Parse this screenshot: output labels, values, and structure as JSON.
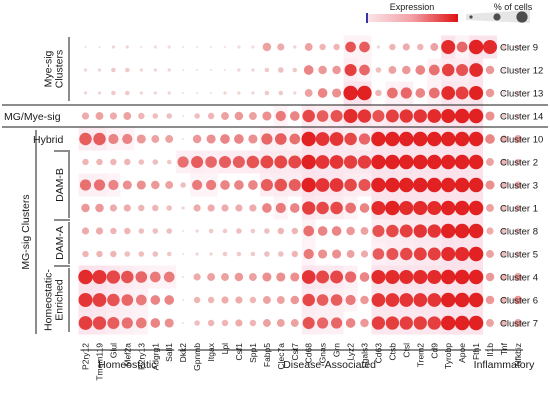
{
  "chart_data": {
    "type": "dotplot",
    "legend": {
      "color_title": "Expression",
      "size_title": "% of cells"
    },
    "genes": [
      "P2ry12",
      "Tmem119",
      "Glul",
      "Mef2a",
      "P2ry13",
      "Adgrg1",
      "Sall1",
      "Dkk2",
      "Gpnmb",
      "Itgax",
      "Lpl",
      "Csf1",
      "Spp1",
      "Fabp5",
      "Clec7a",
      "Cst7",
      "Cd68",
      "Gnas",
      "Grn",
      "Lyz2",
      "Lgals3",
      "Cd63",
      "Ctsb",
      "Ctsl",
      "Trem2",
      "Cd9",
      "Tyrobp",
      "Apoe",
      "Fth1",
      "Il1b",
      "Tnf",
      "Nfkbiz"
    ],
    "clusters": [
      "Cluster 9",
      "Cluster 12",
      "Cluster 13",
      "Cluster 14",
      "Cluster 10",
      "Cluster 2",
      "Cluster 3",
      "Cluster 1",
      "Cluster 8",
      "Cluster 5",
      "Cluster 4",
      "Cluster 6",
      "Cluster 7"
    ],
    "gene_groups": [
      {
        "label": "Homeostatic",
        "from": 0,
        "to": 6
      },
      {
        "label": "Disease-Associated",
        "from": 7,
        "to": 28
      },
      {
        "label": "Inflammatory",
        "from": 29,
        "to": 31
      }
    ],
    "row_groups": [
      {
        "label": "Mye-sig\nClusters",
        "from": 0,
        "to": 2
      },
      {
        "label": "MG/Mye-sig",
        "from": 3,
        "to": 3
      },
      {
        "label": "Hybrid",
        "from": 4,
        "to": 4
      },
      {
        "label": "DAM-B",
        "from": 5,
        "to": 7
      },
      {
        "label": "DAM-A",
        "from": 8,
        "to": 9
      },
      {
        "label": "Homeostatic-\nEnriched",
        "from": 10,
        "to": 12
      }
    ],
    "outer_row_label": "MG-sig Clusters",
    "percent": [
      [
        0.02,
        0.02,
        0.05,
        0.05,
        0.02,
        0.05,
        0.05,
        0.02,
        0.02,
        0.02,
        0.02,
        0.05,
        0.05,
        0.35,
        0.25,
        0.05,
        0.3,
        0.2,
        0.2,
        0.55,
        0.55,
        0.05,
        0.2,
        0.25,
        0.2,
        0.3,
        0.95,
        0.55,
        1.0,
        0.95,
        0.1,
        0.1
      ],
      [
        0.05,
        0.05,
        0.1,
        0.1,
        0.05,
        0.05,
        0.05,
        0.02,
        0.02,
        0.02,
        0.02,
        0.05,
        0.05,
        0.1,
        0.15,
        0.1,
        0.45,
        0.35,
        0.35,
        0.7,
        0.55,
        0.15,
        0.3,
        0.35,
        0.45,
        0.55,
        0.75,
        0.7,
        0.9,
        0.35,
        0.05,
        0.05
      ],
      [
        0.05,
        0.05,
        0.1,
        0.1,
        0.05,
        0.05,
        0.05,
        0.02,
        0.02,
        0.02,
        0.05,
        0.05,
        0.05,
        0.1,
        0.1,
        0.05,
        0.3,
        0.45,
        0.4,
        1.0,
        1.0,
        0.2,
        0.55,
        0.6,
        0.45,
        0.55,
        0.9,
        0.8,
        0.95,
        0.35,
        0.05,
        0.1
      ],
      [
        0.25,
        0.3,
        0.25,
        0.3,
        0.2,
        0.15,
        0.15,
        0.02,
        0.15,
        0.2,
        0.3,
        0.35,
        0.3,
        0.4,
        0.5,
        0.45,
        0.75,
        0.65,
        0.7,
        0.95,
        0.85,
        0.7,
        0.8,
        0.85,
        0.85,
        0.9,
        0.95,
        1.0,
        1.0,
        0.4,
        0.1,
        0.1
      ],
      [
        0.75,
        0.75,
        0.5,
        0.5,
        0.4,
        0.3,
        0.3,
        0.02,
        0.35,
        0.4,
        0.45,
        0.45,
        0.4,
        0.6,
        0.65,
        0.55,
        1.0,
        0.9,
        0.9,
        0.75,
        0.6,
        1.0,
        1.0,
        1.0,
        1.0,
        1.0,
        1.0,
        1.0,
        1.0,
        0.45,
        0.25,
        0.3
      ],
      [
        0.2,
        0.2,
        0.2,
        0.2,
        0.15,
        0.15,
        0.1,
        0.6,
        0.7,
        0.65,
        0.7,
        0.7,
        0.75,
        0.8,
        0.8,
        0.8,
        1.0,
        0.9,
        0.9,
        0.85,
        0.85,
        1.0,
        1.0,
        1.0,
        1.0,
        1.0,
        1.0,
        1.0,
        1.0,
        0.3,
        0.2,
        0.2
      ],
      [
        0.6,
        0.6,
        0.5,
        0.4,
        0.4,
        0.35,
        0.3,
        0.15,
        0.5,
        0.5,
        0.45,
        0.45,
        0.45,
        0.7,
        0.75,
        0.7,
        1.0,
        0.9,
        0.9,
        0.75,
        0.7,
        1.0,
        1.0,
        1.0,
        1.0,
        1.0,
        1.0,
        1.0,
        1.0,
        0.4,
        0.2,
        0.25
      ],
      [
        0.35,
        0.35,
        0.25,
        0.25,
        0.2,
        0.2,
        0.15,
        0.05,
        0.25,
        0.25,
        0.25,
        0.25,
        0.25,
        0.45,
        0.5,
        0.45,
        0.85,
        0.75,
        0.75,
        0.55,
        0.45,
        0.95,
        1.0,
        0.95,
        0.95,
        0.95,
        1.0,
        1.0,
        1.0,
        0.3,
        0.15,
        0.2
      ],
      [
        0.25,
        0.25,
        0.2,
        0.2,
        0.15,
        0.15,
        0.15,
        0.02,
        0.05,
        0.1,
        0.1,
        0.15,
        0.1,
        0.15,
        0.2,
        0.2,
        0.55,
        0.45,
        0.45,
        0.35,
        0.3,
        0.7,
        0.75,
        0.8,
        0.85,
        0.85,
        1.0,
        1.0,
        1.0,
        0.25,
        0.15,
        0.15
      ],
      [
        0.2,
        0.2,
        0.2,
        0.15,
        0.15,
        0.15,
        0.1,
        0.02,
        0.05,
        0.05,
        0.1,
        0.1,
        0.1,
        0.15,
        0.15,
        0.2,
        0.5,
        0.4,
        0.4,
        0.3,
        0.25,
        0.65,
        0.7,
        0.75,
        0.8,
        0.8,
        0.95,
        0.95,
        1.0,
        0.3,
        0.15,
        0.15
      ],
      [
        1.0,
        0.95,
        0.85,
        0.75,
        0.65,
        0.55,
        0.55,
        0.02,
        0.25,
        0.3,
        0.3,
        0.35,
        0.3,
        0.4,
        0.4,
        0.4,
        0.9,
        0.8,
        0.8,
        0.6,
        0.45,
        0.95,
        0.95,
        0.95,
        0.95,
        0.95,
        1.0,
        1.0,
        1.0,
        0.35,
        0.2,
        0.3
      ],
      [
        0.95,
        0.9,
        0.75,
        0.65,
        0.55,
        0.45,
        0.45,
        0.02,
        0.2,
        0.2,
        0.25,
        0.25,
        0.2,
        0.3,
        0.3,
        0.35,
        0.75,
        0.65,
        0.65,
        0.5,
        0.35,
        0.9,
        0.9,
        0.9,
        0.9,
        0.9,
        1.0,
        1.0,
        1.0,
        0.35,
        0.2,
        0.35
      ],
      [
        0.9,
        0.85,
        0.7,
        0.6,
        0.55,
        0.45,
        0.4,
        0.02,
        0.15,
        0.2,
        0.2,
        0.25,
        0.2,
        0.3,
        0.3,
        0.3,
        0.7,
        0.6,
        0.6,
        0.45,
        0.35,
        0.85,
        0.85,
        0.85,
        0.85,
        0.85,
        1.0,
        1.0,
        1.0,
        0.3,
        0.2,
        0.3
      ]
    ],
    "expression": [
      [
        0.05,
        0.05,
        0.1,
        0.1,
        0.05,
        0.05,
        0.05,
        0.05,
        0.05,
        0.05,
        0.05,
        0.05,
        0.05,
        0.35,
        0.3,
        0.1,
        0.35,
        0.25,
        0.25,
        0.75,
        0.7,
        0.1,
        0.25,
        0.3,
        0.25,
        0.35,
        0.95,
        0.65,
        1.0,
        0.95,
        0.15,
        0.15
      ],
      [
        0.1,
        0.1,
        0.15,
        0.15,
        0.1,
        0.1,
        0.1,
        0.05,
        0.05,
        0.05,
        0.05,
        0.1,
        0.1,
        0.15,
        0.2,
        0.15,
        0.5,
        0.4,
        0.4,
        0.85,
        0.65,
        0.2,
        0.35,
        0.4,
        0.5,
        0.6,
        0.85,
        0.75,
        0.95,
        0.4,
        0.1,
        0.1
      ],
      [
        0.1,
        0.1,
        0.15,
        0.15,
        0.1,
        0.1,
        0.1,
        0.05,
        0.05,
        0.05,
        0.1,
        0.1,
        0.1,
        0.15,
        0.15,
        0.1,
        0.35,
        0.5,
        0.45,
        1.0,
        1.0,
        0.25,
        0.6,
        0.65,
        0.5,
        0.6,
        0.95,
        0.85,
        1.0,
        0.4,
        0.1,
        0.15
      ],
      [
        0.3,
        0.35,
        0.3,
        0.35,
        0.25,
        0.2,
        0.2,
        0.05,
        0.2,
        0.25,
        0.35,
        0.4,
        0.35,
        0.45,
        0.55,
        0.5,
        0.8,
        0.7,
        0.75,
        0.95,
        0.9,
        0.75,
        0.85,
        0.9,
        0.9,
        0.95,
        1.0,
        1.0,
        1.0,
        0.45,
        0.15,
        0.15
      ],
      [
        0.7,
        0.7,
        0.5,
        0.5,
        0.4,
        0.35,
        0.35,
        0.05,
        0.4,
        0.45,
        0.5,
        0.5,
        0.45,
        0.65,
        0.7,
        0.6,
        1.0,
        0.9,
        0.9,
        0.8,
        0.65,
        1.0,
        1.0,
        1.0,
        1.0,
        1.0,
        1.0,
        1.0,
        1.0,
        0.5,
        0.3,
        0.35
      ],
      [
        0.25,
        0.25,
        0.25,
        0.25,
        0.2,
        0.2,
        0.15,
        0.6,
        0.7,
        0.65,
        0.7,
        0.7,
        0.75,
        0.8,
        0.8,
        0.8,
        1.0,
        0.9,
        0.9,
        0.85,
        0.85,
        1.0,
        1.0,
        1.0,
        1.0,
        1.0,
        1.0,
        1.0,
        1.0,
        0.35,
        0.25,
        0.25
      ],
      [
        0.6,
        0.6,
        0.5,
        0.45,
        0.45,
        0.4,
        0.35,
        0.2,
        0.55,
        0.55,
        0.5,
        0.5,
        0.5,
        0.7,
        0.75,
        0.7,
        1.0,
        0.9,
        0.9,
        0.8,
        0.75,
        1.0,
        1.0,
        1.0,
        1.0,
        1.0,
        1.0,
        1.0,
        1.0,
        0.45,
        0.25,
        0.3
      ],
      [
        0.4,
        0.4,
        0.3,
        0.3,
        0.25,
        0.25,
        0.2,
        0.1,
        0.3,
        0.3,
        0.3,
        0.3,
        0.3,
        0.5,
        0.55,
        0.5,
        0.85,
        0.8,
        0.8,
        0.6,
        0.5,
        0.95,
        1.0,
        0.95,
        0.95,
        0.95,
        1.0,
        1.0,
        1.0,
        0.35,
        0.2,
        0.25
      ],
      [
        0.3,
        0.3,
        0.25,
        0.25,
        0.2,
        0.2,
        0.2,
        0.05,
        0.1,
        0.15,
        0.15,
        0.2,
        0.15,
        0.2,
        0.25,
        0.25,
        0.6,
        0.5,
        0.5,
        0.4,
        0.35,
        0.75,
        0.8,
        0.85,
        0.9,
        0.9,
        1.0,
        1.0,
        1.0,
        0.3,
        0.2,
        0.2
      ],
      [
        0.25,
        0.25,
        0.25,
        0.2,
        0.2,
        0.2,
        0.15,
        0.05,
        0.1,
        0.1,
        0.15,
        0.15,
        0.15,
        0.2,
        0.2,
        0.25,
        0.55,
        0.45,
        0.45,
        0.35,
        0.3,
        0.7,
        0.75,
        0.8,
        0.85,
        0.85,
        0.95,
        0.95,
        1.0,
        0.35,
        0.2,
        0.2
      ],
      [
        0.95,
        0.9,
        0.8,
        0.75,
        0.65,
        0.55,
        0.55,
        0.05,
        0.3,
        0.35,
        0.35,
        0.4,
        0.35,
        0.45,
        0.45,
        0.45,
        0.9,
        0.8,
        0.8,
        0.65,
        0.5,
        0.95,
        0.95,
        0.95,
        0.95,
        0.95,
        1.0,
        1.0,
        1.0,
        0.4,
        0.25,
        0.35
      ],
      [
        0.9,
        0.85,
        0.75,
        0.65,
        0.55,
        0.5,
        0.5,
        0.05,
        0.25,
        0.25,
        0.3,
        0.3,
        0.25,
        0.35,
        0.35,
        0.4,
        0.8,
        0.7,
        0.7,
        0.55,
        0.4,
        0.9,
        0.9,
        0.9,
        0.9,
        0.9,
        1.0,
        1.0,
        1.0,
        0.4,
        0.25,
        0.4
      ],
      [
        0.85,
        0.8,
        0.7,
        0.6,
        0.55,
        0.5,
        0.45,
        0.05,
        0.2,
        0.25,
        0.25,
        0.3,
        0.25,
        0.35,
        0.35,
        0.35,
        0.75,
        0.65,
        0.65,
        0.5,
        0.4,
        0.85,
        0.85,
        0.85,
        0.85,
        0.85,
        1.0,
        1.0,
        1.0,
        0.35,
        0.25,
        0.35
      ]
    ],
    "colors": {
      "low": "#f2e4e4",
      "high": "#e01010",
      "highlight": "#fbe0ea",
      "legend_min_tick": "#3333aa",
      "size_legend": "#4d4d4d"
    }
  }
}
